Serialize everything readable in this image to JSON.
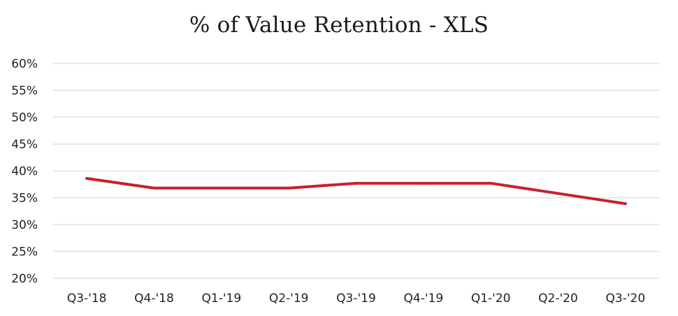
{
  "chart_data": {
    "type": "line",
    "title": "% of Value Retention - XLS",
    "xlabel": "",
    "ylabel": "",
    "categories": [
      "Q3-'18",
      "Q4-'18",
      "Q1-'19",
      "Q2-'19",
      "Q3-'19",
      "Q4-'19",
      "Q1-'20",
      "Q2-'20",
      "Q3-'20"
    ],
    "series": [
      {
        "values": [
          38.6,
          36.8,
          36.8,
          36.8,
          37.7,
          37.7,
          37.7,
          35.8,
          33.9
        ],
        "color": "#c8202f"
      }
    ],
    "ylim": [
      20,
      60
    ],
    "yticks": [
      "20%",
      "25%",
      "30%",
      "35%",
      "40%",
      "45%",
      "50%",
      "55%",
      "60%"
    ],
    "grid": true,
    "legend": "none"
  }
}
